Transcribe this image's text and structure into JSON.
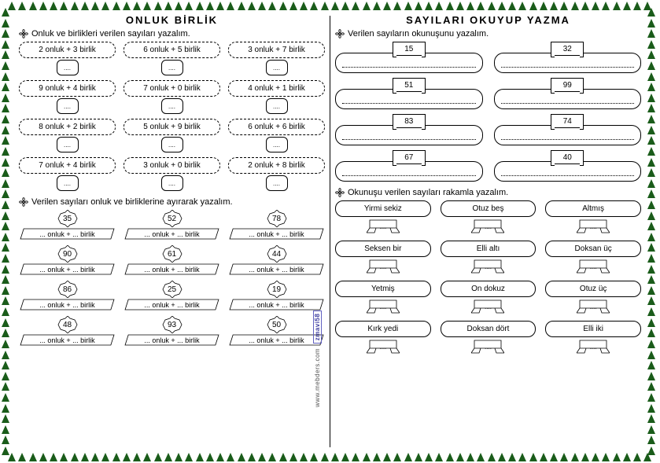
{
  "titles": {
    "left": "ONLUK  BİRLİK",
    "right": "SAYILARI  OKUYUP  YAZMA"
  },
  "instructions": {
    "a": "Onluk ve birlikleri verilen sayıları yazalım.",
    "b": "Verilen  sayıları onluk ve birliklerine ayırarak yazalım.",
    "c": "Verilen sayıların okunuşunu yazalım.",
    "d": "Okunuşu verilen sayıları rakamla yazalım."
  },
  "sectionA": [
    "2 onluk + 3 birlik",
    "6 onluk + 5 birlik",
    "3 onluk + 7 birlik",
    "9 onluk + 4 birlik",
    "7 onluk + 0 birlik",
    "4 onluk + 1 birlik",
    "8 onluk + 2 birlik",
    "5 onluk + 9 birlik",
    "6 onluk + 6 birlik",
    "7 onluk + 4 birlik",
    "3 onluk + 0 birlik",
    "2 onluk + 8 birlik"
  ],
  "sectionB_nums": [
    "35",
    "52",
    "78",
    "90",
    "61",
    "44",
    "86",
    "25",
    "19",
    "48",
    "93",
    "50"
  ],
  "sectionB_fill": "... onluk + ... birlik",
  "sectionC_nums": [
    "15",
    "32",
    "51",
    "99",
    "83",
    "74",
    "67",
    "40"
  ],
  "sectionD_words": [
    "Yirmi sekiz",
    "Otuz beş",
    "Altmış",
    "Seksen  bir",
    "Elli altı",
    "Doksan üç",
    "Yetmiş",
    "On dokuz",
    "Otuz üç",
    "Kırk yedi",
    "Doksan dört",
    "Elli iki"
  ],
  "dots": "....",
  "watermark_site": "www.mebders.com",
  "watermark_tag": "zmavi58"
}
